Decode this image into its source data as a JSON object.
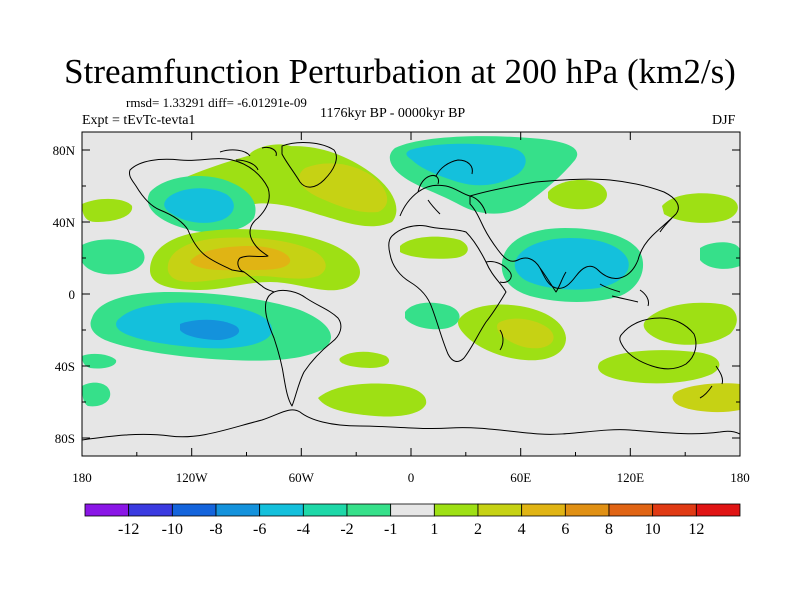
{
  "title": "Streamfunction Perturbation at 200 hPa (km2/s)",
  "stats": "rmsd= 1.33291 diff= -6.01291e-09",
  "experiment": "Expt = tEvTc-tevta1",
  "period": "1176kyr BP - 0000kyr BP",
  "season": "DJF",
  "lat_ticks": [
    "80N",
    "40N",
    "0",
    "40S",
    "80S"
  ],
  "lon_ticks": [
    "180",
    "120W",
    "60W",
    "0",
    "60E",
    "120E",
    "180"
  ],
  "colorbar": {
    "labels": [
      "-12",
      "-10",
      "-8",
      "-6",
      "-4",
      "-2",
      "-1",
      "1",
      "2",
      "4",
      "6",
      "8",
      "10",
      "12"
    ],
    "colors": [
      "#8a16e6",
      "#3a3ae0",
      "#1464dc",
      "#1492dc",
      "#14c0dc",
      "#1ed8a8",
      "#36e08a",
      "#e6e6e6",
      "#9ee014",
      "#c6d214",
      "#e0b414",
      "#e09014",
      "#e06414",
      "#e03a14",
      "#e01414"
    ]
  }
}
